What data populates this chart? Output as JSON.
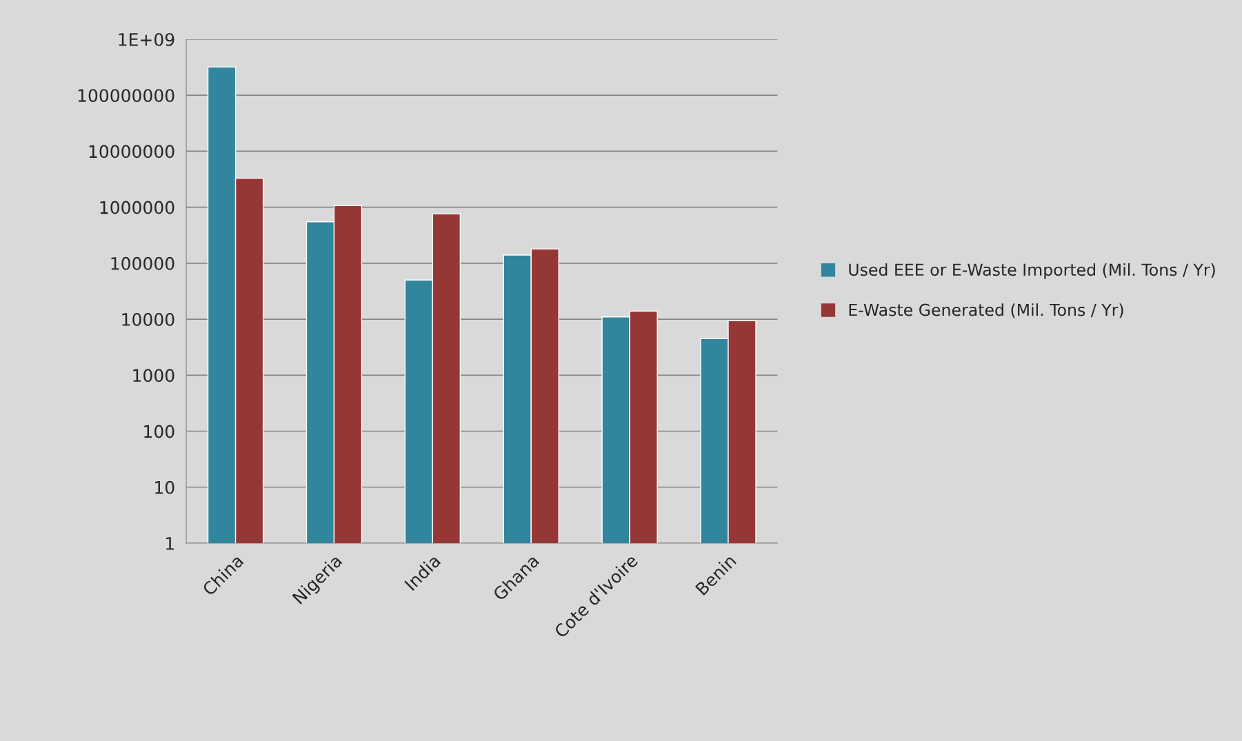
{
  "chart_data": {
    "type": "bar",
    "categories": [
      "China",
      "Nigeria",
      "India",
      "Ghana",
      "Cote d'Ivoire",
      "Benin"
    ],
    "series": [
      {
        "name": "Used EEE or E-Waste Imported (Mil. Tons / Yr)",
        "color": "#31859c",
        "values": [
          320000000,
          550000,
          50000,
          140000,
          11000,
          4500
        ]
      },
      {
        "name": "E-Waste Generated (Mil. Tons / Yr)",
        "color": "#953735",
        "values": [
          3300000,
          1070000,
          760000,
          180000,
          14000,
          9400
        ]
      }
    ],
    "log": "y",
    "ylim": [
      1,
      1000000000
    ],
    "yticks": [
      1,
      10,
      100,
      1000,
      10000,
      100000,
      1000000,
      10000000,
      100000000,
      {
        "value": 1000000000,
        "label": "1E+09"
      }
    ],
    "grid": "y",
    "legend": "right"
  }
}
